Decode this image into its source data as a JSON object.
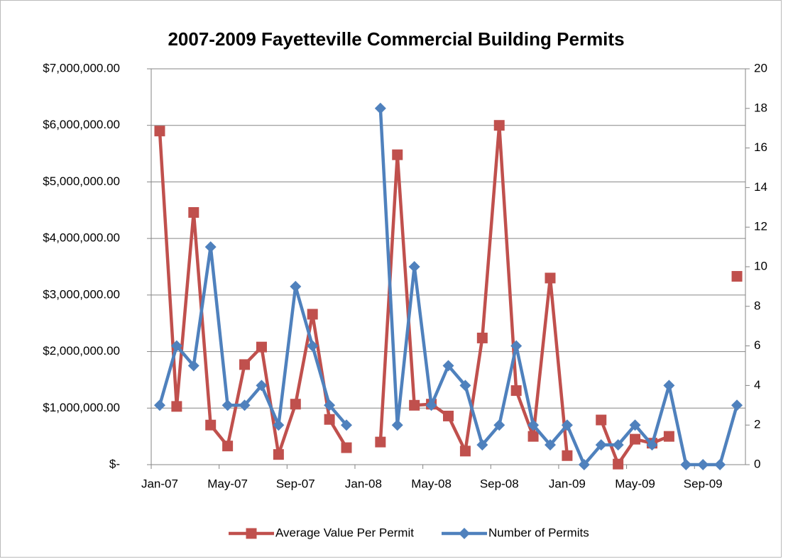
{
  "chart_data": {
    "type": "line",
    "title": "2007-2009 Fayetteville Commercial Building Permits",
    "categories": [
      "Jan-07",
      null,
      null,
      null,
      "May-07",
      null,
      null,
      null,
      "Sep-07",
      null,
      null,
      null,
      "Jan-08",
      null,
      null,
      null,
      "May-08",
      null,
      null,
      null,
      "Sep-08",
      null,
      null,
      null,
      "Jan-09",
      null,
      null,
      null,
      "May-09",
      null,
      null,
      null,
      "Sep-09",
      null,
      null
    ],
    "series": [
      {
        "name": "Average Value Per Permit",
        "color": "#c0504d",
        "marker": "square",
        "values": [
          5900000,
          1030000,
          4460000,
          700000,
          330000,
          1770000,
          2080000,
          180000,
          1070000,
          2660000,
          800000,
          300000,
          null,
          400000,
          5480000,
          1050000,
          1070000,
          860000,
          240000,
          2240000,
          6000000,
          1310000,
          500000,
          3300000,
          160000,
          null,
          790000,
          10000,
          450000,
          380000,
          500000,
          null,
          null,
          null,
          3330000
        ]
      },
      {
        "name": "Number of Permits",
        "color": "#4f81bd",
        "marker": "diamond",
        "axis": "y2",
        "values": [
          3,
          6,
          5,
          11,
          3,
          3,
          4,
          2,
          9,
          6,
          3,
          2,
          null,
          18,
          2,
          10,
          3,
          5,
          4,
          1,
          2,
          6,
          2,
          1,
          2,
          0,
          1,
          1,
          2,
          1,
          4,
          0,
          0,
          0,
          3
        ]
      }
    ],
    "ylim": [
      0,
      7000000
    ],
    "yticks": [
      {
        "value": 0,
        "label": "$-"
      },
      {
        "value": 1000000,
        "label": "$1,000,000.00"
      },
      {
        "value": 2000000,
        "label": "$2,000,000.00"
      },
      {
        "value": 3000000,
        "label": "$3,000,000.00"
      },
      {
        "value": 4000000,
        "label": "$4,000,000.00"
      },
      {
        "value": 5000000,
        "label": "$5,000,000.00"
      },
      {
        "value": 6000000,
        "label": "$6,000,000.00"
      },
      {
        "value": 7000000,
        "label": "$7,000,000.00"
      }
    ],
    "y2lim": [
      0,
      20
    ],
    "y2ticks": [
      0,
      2,
      4,
      6,
      8,
      10,
      12,
      14,
      16,
      18,
      20
    ],
    "grid": true,
    "legend": "bottom"
  }
}
